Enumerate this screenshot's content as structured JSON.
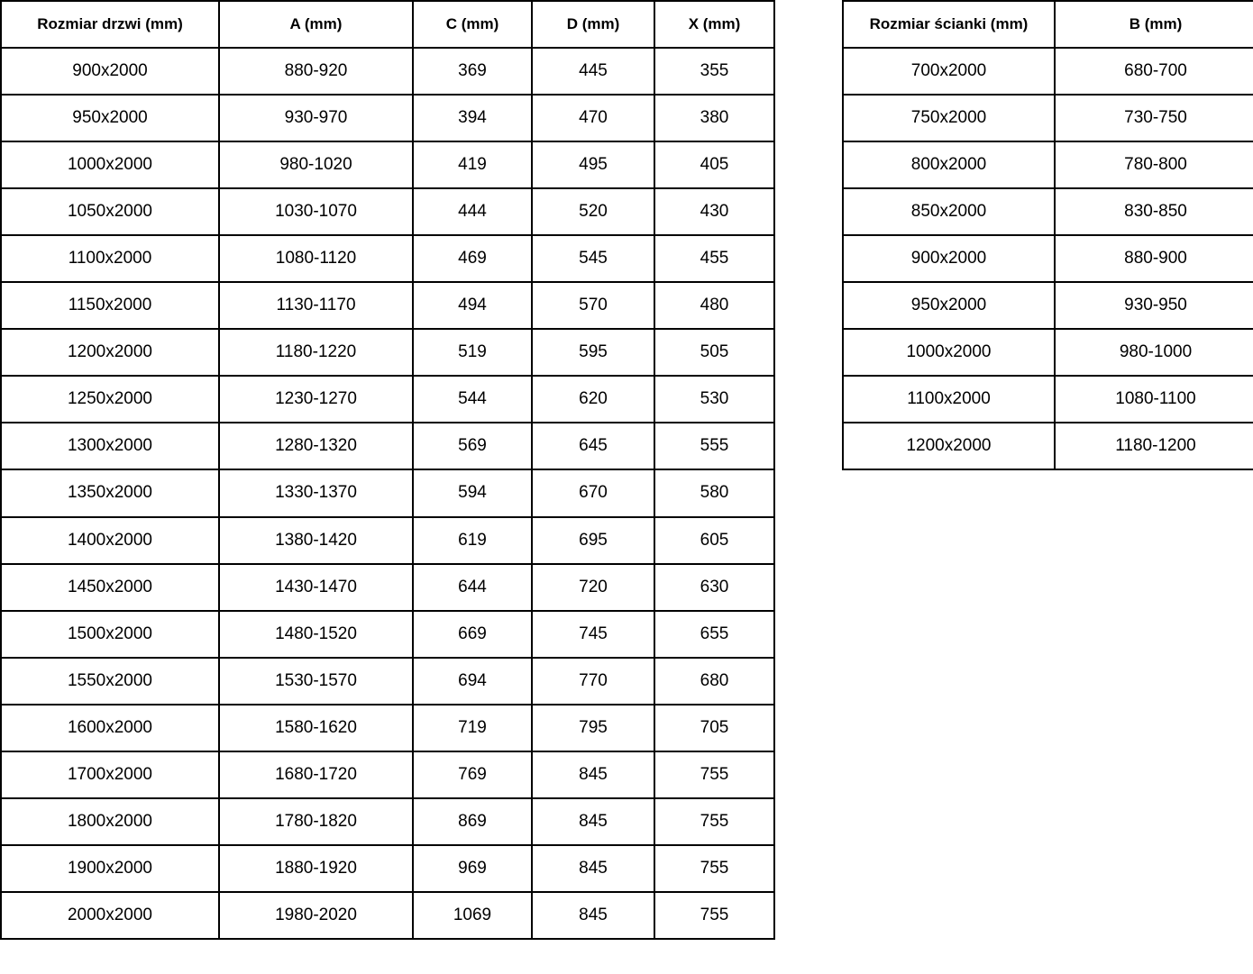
{
  "page": {
    "background_color": "#ffffff",
    "text_color": "#000000",
    "border_color": "#000000"
  },
  "door_table": {
    "headers": [
      "Rozmiar drzwi (mm)",
      "A (mm)",
      "C (mm)",
      "D (mm)",
      "X (mm)"
    ],
    "rows": [
      [
        "900x2000",
        "880-920",
        "369",
        "445",
        "355"
      ],
      [
        "950x2000",
        "930-970",
        "394",
        "470",
        "380"
      ],
      [
        "1000x2000",
        "980-1020",
        "419",
        "495",
        "405"
      ],
      [
        "1050x2000",
        "1030-1070",
        "444",
        "520",
        "430"
      ],
      [
        "1100x2000",
        "1080-1120",
        "469",
        "545",
        "455"
      ],
      [
        "1150x2000",
        "1130-1170",
        "494",
        "570",
        "480"
      ],
      [
        "1200x2000",
        "1180-1220",
        "519",
        "595",
        "505"
      ],
      [
        "1250x2000",
        "1230-1270",
        "544",
        "620",
        "530"
      ],
      [
        "1300x2000",
        "1280-1320",
        "569",
        "645",
        "555"
      ],
      [
        "1350x2000",
        "1330-1370",
        "594",
        "670",
        "580"
      ],
      [
        "1400x2000",
        "1380-1420",
        "619",
        "695",
        "605"
      ],
      [
        "1450x2000",
        "1430-1470",
        "644",
        "720",
        "630"
      ],
      [
        "1500x2000",
        "1480-1520",
        "669",
        "745",
        "655"
      ],
      [
        "1550x2000",
        "1530-1570",
        "694",
        "770",
        "680"
      ],
      [
        "1600x2000",
        "1580-1620",
        "719",
        "795",
        "705"
      ],
      [
        "1700x2000",
        "1680-1720",
        "769",
        "845",
        "755"
      ],
      [
        "1800x2000",
        "1780-1820",
        "869",
        "845",
        "755"
      ],
      [
        "1900x2000",
        "1880-1920",
        "969",
        "845",
        "755"
      ],
      [
        "2000x2000",
        "1980-2020",
        "1069",
        "845",
        "755"
      ]
    ]
  },
  "wall_table": {
    "headers": [
      "Rozmiar ścianki (mm)",
      "B (mm)"
    ],
    "rows": [
      [
        "700x2000",
        "680-700"
      ],
      [
        "750x2000",
        "730-750"
      ],
      [
        "800x2000",
        "780-800"
      ],
      [
        "850x2000",
        "830-850"
      ],
      [
        "900x2000",
        "880-900"
      ],
      [
        "950x2000",
        "930-950"
      ],
      [
        "1000x2000",
        "980-1000"
      ],
      [
        "1100x2000",
        "1080-1100"
      ],
      [
        "1200x2000",
        "1180-1200"
      ]
    ]
  }
}
